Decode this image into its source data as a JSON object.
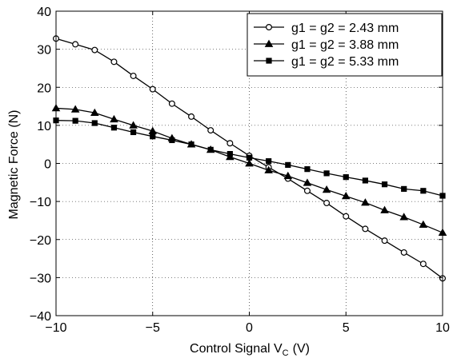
{
  "chart_data": {
    "type": "line",
    "xlabel_main": "Control Signal V",
    "xlabel_sub": "C",
    "xlabel_unit": "(V)",
    "ylabel": "Magnetic Force  (N)",
    "xlim": [
      -10,
      10
    ],
    "ylim": [
      -40,
      40
    ],
    "xticks": [
      -10,
      -5,
      0,
      5,
      10
    ],
    "yticks": [
      -40,
      -30,
      -20,
      -10,
      0,
      10,
      20,
      30,
      40
    ],
    "xtick_labels": [
      "−10",
      "−5",
      "0",
      "5",
      "10"
    ],
    "ytick_labels": [
      "−40",
      "−30",
      "−20",
      "−10",
      "0",
      "10",
      "20",
      "30",
      "40"
    ],
    "grid": true,
    "legend_position": "top-right",
    "x": [
      -10,
      -9,
      -8,
      -7,
      -6,
      -5,
      -4,
      -3,
      -2,
      -1,
      0,
      1,
      2,
      3,
      4,
      5,
      6,
      7,
      8,
      9,
      10
    ],
    "series": [
      {
        "name": "g1 = g2 = 2.43 mm",
        "marker": "circle",
        "values": [
          32.8,
          31.3,
          29.8,
          26.7,
          23.0,
          19.5,
          15.7,
          12.3,
          8.7,
          5.3,
          2.0,
          -1.0,
          -4.0,
          -7.2,
          -10.4,
          -13.9,
          -17.2,
          -20.3,
          -23.4,
          -26.4,
          -30.2
        ]
      },
      {
        "name": "g1 = g2 = 3.88 mm",
        "marker": "triangle",
        "values": [
          14.5,
          14.2,
          13.3,
          11.6,
          10.0,
          8.5,
          6.6,
          5.0,
          3.6,
          1.7,
          0.0,
          -1.8,
          -3.3,
          -5.1,
          -6.9,
          -8.6,
          -10.3,
          -12.3,
          -14.1,
          -16.1,
          -18.2
        ]
      },
      {
        "name": "g1 = g2 = 5.33 mm",
        "marker": "square",
        "values": [
          11.3,
          11.2,
          10.6,
          9.4,
          8.2,
          7.1,
          6.1,
          5.0,
          3.6,
          2.5,
          1.5,
          0.6,
          -0.4,
          -1.5,
          -2.6,
          -3.6,
          -4.5,
          -5.5,
          -6.7,
          -7.2,
          -8.5
        ]
      }
    ]
  }
}
